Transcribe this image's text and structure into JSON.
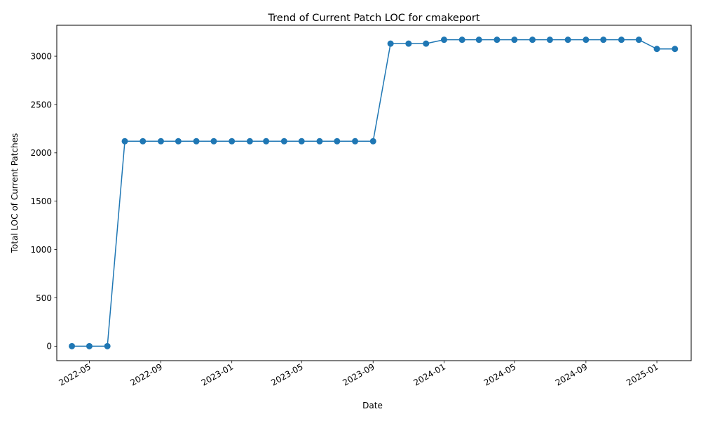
{
  "chart_data": {
    "type": "line",
    "title": "Trend of Current Patch LOC for cmakeport",
    "xlabel": "Date",
    "ylabel": "Total LOC of Current Patches",
    "ylim": [
      -150,
      3320
    ],
    "xlim": [
      "2022-03-06",
      "2025-03-01"
    ],
    "yticks": [
      0,
      500,
      1000,
      1500,
      2000,
      2500,
      3000
    ],
    "xticks": [
      "2022-05-01",
      "2022-09-01",
      "2023-01-01",
      "2023-05-01",
      "2023-09-01",
      "2024-01-01",
      "2024-05-01",
      "2024-09-01",
      "2025-01-01"
    ],
    "xtick_labels": [
      "2022-05",
      "2022-09",
      "2023-01",
      "2023-05",
      "2023-09",
      "2024-01",
      "2024-05",
      "2024-09",
      "2025-01"
    ],
    "grid": false,
    "legend": "none",
    "color": "#1f77b4",
    "marker": "circle",
    "series": [
      {
        "x": [
          "2022-04-01",
          "2022-05-01",
          "2022-06-01",
          "2022-07-01",
          "2022-08-01",
          "2022-09-01",
          "2022-10-01",
          "2022-11-01",
          "2022-12-01",
          "2023-01-01",
          "2023-02-01",
          "2023-03-01",
          "2023-04-01",
          "2023-05-01",
          "2023-06-01",
          "2023-07-01",
          "2023-08-01",
          "2023-09-01",
          "2023-10-01",
          "2023-11-01",
          "2023-12-01",
          "2024-01-01",
          "2024-02-01",
          "2024-03-01",
          "2024-04-01",
          "2024-05-01",
          "2024-06-01",
          "2024-07-01",
          "2024-08-01",
          "2024-09-01",
          "2024-10-01",
          "2024-11-01",
          "2024-12-01",
          "2025-01-01",
          "2025-02-01"
        ],
        "values": [
          0,
          0,
          0,
          2120,
          2120,
          2120,
          2120,
          2120,
          2120,
          2120,
          2120,
          2120,
          2120,
          2120,
          2120,
          2120,
          2120,
          2120,
          3130,
          3130,
          3130,
          3170,
          3170,
          3170,
          3170,
          3170,
          3170,
          3170,
          3170,
          3170,
          3170,
          3170,
          3170,
          3075,
          3075
        ]
      }
    ]
  }
}
